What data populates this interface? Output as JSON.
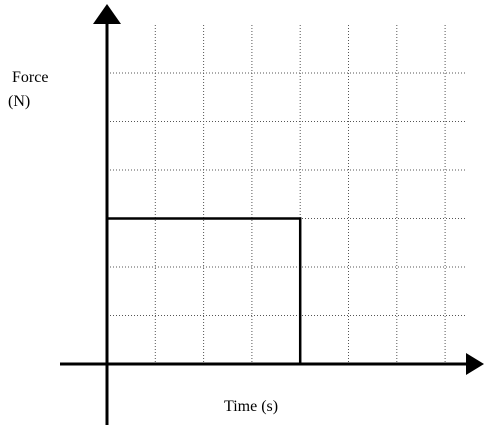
{
  "chart_data": {
    "type": "line",
    "title": "",
    "ylabel_lines": [
      "Force",
      "(N)"
    ],
    "xlabel": "Time (s)",
    "x_grid_count": 7,
    "y_grid_count": 6,
    "grid": true,
    "grid_style": "dotted",
    "tick_labels": false,
    "series": [
      {
        "points": [
          [
            0,
            0
          ],
          [
            0,
            3
          ],
          [
            4,
            3
          ],
          [
            4,
            0
          ]
        ],
        "color": "#000000"
      }
    ]
  }
}
